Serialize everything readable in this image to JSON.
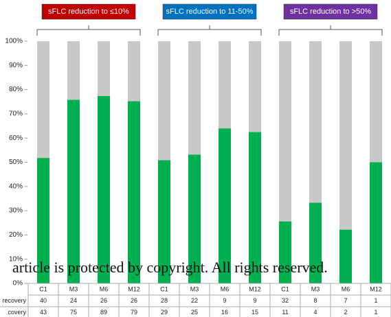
{
  "chart_data": {
    "type": "stacked_bar",
    "groups": [
      {
        "label": "sFLC reduction to ≤10%",
        "color": "#c00000"
      },
      {
        "label": "sFLC reduction to 11-50%",
        "color": "#0070c0"
      },
      {
        "label": "sFLC reduction to >50%",
        "color": "#7030a0"
      }
    ],
    "categories": [
      "C1",
      "M3",
      "M6",
      "M12",
      "C1",
      "M3",
      "M6",
      "M12",
      "C1",
      "M3",
      "M6",
      "M12"
    ],
    "series": [
      {
        "color": "#00b050",
        "values": [
          51.8,
          75.8,
          77.4,
          75.2,
          50.9,
          53.2,
          64.0,
          62.5,
          25.6,
          33.3,
          22.2,
          50.0
        ]
      },
      {
        "color": "#c8c8c8",
        "values": [
          48.2,
          24.2,
          22.6,
          24.8,
          49.1,
          46.8,
          36.0,
          37.5,
          74.4,
          66.7,
          77.8,
          50.0
        ]
      }
    ],
    "ylim": [
      0,
      100
    ],
    "yticks": [
      {
        "value": 0,
        "label": "0%"
      },
      {
        "value": 10,
        "label": "10%"
      },
      {
        "value": 20,
        "label": "20%"
      },
      {
        "value": 30,
        "label": "30%"
      },
      {
        "value": 40,
        "label": "40%"
      },
      {
        "value": 50,
        "label": "50%"
      },
      {
        "value": 60,
        "label": "60%"
      },
      {
        "value": 70,
        "label": "70%"
      },
      {
        "value": 80,
        "label": "80%"
      },
      {
        "value": 90,
        "label": "90%"
      },
      {
        "value": 100,
        "label": "100%"
      }
    ],
    "table": {
      "rows": [
        {
          "label": "recovery",
          "values": [
            40,
            24,
            26,
            26,
            28,
            22,
            9,
            9,
            32,
            8,
            7,
            1
          ]
        },
        {
          "label": "covery",
          "values": [
            43,
            75,
            89,
            79,
            29,
            25,
            16,
            15,
            11,
            4,
            2,
            1
          ]
        }
      ]
    },
    "watermark": "article is protected by copyright. All rights reserved."
  }
}
